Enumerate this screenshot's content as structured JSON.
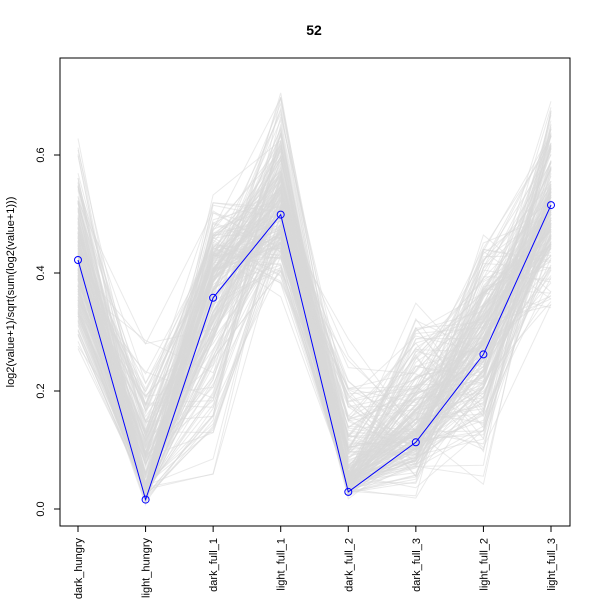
{
  "chart_data": {
    "type": "line",
    "title": "52",
    "xlabel": "",
    "ylabel": "log2(value+1)/sqrt(sum(log2(value+1)))",
    "categories": [
      "dark_hungry",
      "light_hungry",
      "dark_full_1",
      "light_full_1",
      "dark_full_2",
      "dark_full_3",
      "light_full_2",
      "light_full_3"
    ],
    "ylim": [
      0.0,
      0.73
    ],
    "yticks": [
      0.0,
      0.2,
      0.4,
      0.6
    ],
    "ytick_labels": [
      "0.0",
      "0.2",
      "0.4",
      "0.6"
    ],
    "highlight_series": {
      "values": [
        0.422,
        0.016,
        0.358,
        0.499,
        0.029,
        0.113,
        0.262,
        0.515
      ],
      "color": "#0000ff"
    },
    "background_series": {
      "color": "#d9d9d9",
      "count": 220,
      "lower": [
        0.22,
        0.0,
        0.0,
        0.33,
        0.0,
        0.0,
        0.0,
        0.3
      ],
      "upper": [
        0.66,
        0.33,
        0.57,
        0.74,
        0.33,
        0.44,
        0.53,
        0.73
      ],
      "center": [
        0.42,
        0.04,
        0.38,
        0.52,
        0.06,
        0.14,
        0.28,
        0.5
      ]
    }
  }
}
